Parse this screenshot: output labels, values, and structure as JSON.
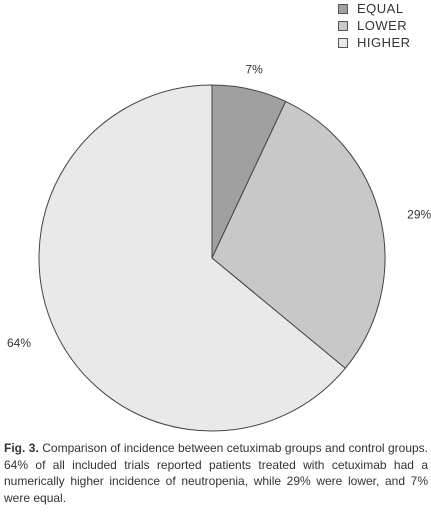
{
  "chart_data": {
    "type": "pie",
    "slices": [
      {
        "label": "EQUAL",
        "value": 7,
        "value_label": "7%",
        "color": "#a0a0a0"
      },
      {
        "label": "LOWER",
        "value": 29,
        "value_label": "29%",
        "color": "#c8c8c8"
      },
      {
        "label": "HIGHER",
        "value": 64,
        "value_label": "64%",
        "color": "#e9e9e9"
      }
    ],
    "legend_position": "top-right",
    "start_angle": "12 o'clock",
    "direction": "clockwise"
  },
  "caption": {
    "label": "Fig. 3.",
    "text": "Comparison of incidence between cetuximab groups and control groups. 64% of all included trials reported patients treated with cetuximab had a numerically higher incidence of neutropenia, while 29% were lower, and 7% were equal."
  }
}
